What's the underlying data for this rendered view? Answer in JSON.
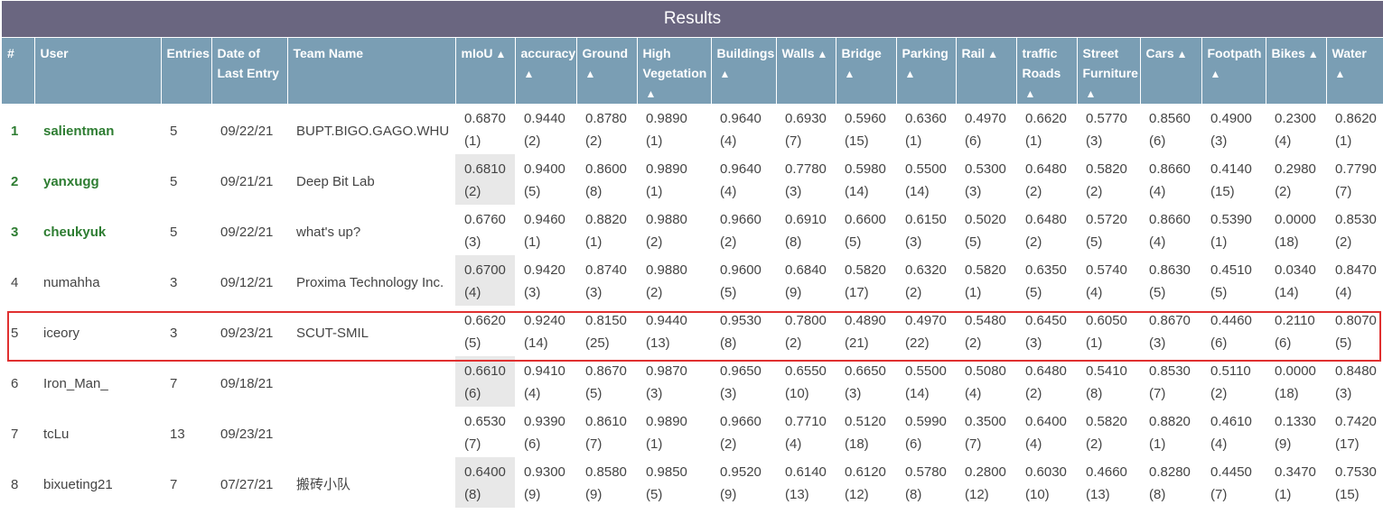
{
  "title": "Results",
  "columns": [
    {
      "key": "rank",
      "label": "#",
      "sortable": false
    },
    {
      "key": "user",
      "label": "User",
      "sortable": false
    },
    {
      "key": "entries",
      "label": "Entries",
      "sortable": false
    },
    {
      "key": "date",
      "label": "Date of Last Entry",
      "sortable": false
    },
    {
      "key": "team",
      "label": "Team Name",
      "sortable": false
    },
    {
      "key": "miou",
      "label": "mIoU",
      "sortable": true
    },
    {
      "key": "accuracy",
      "label": "accuracy",
      "sortable": true
    },
    {
      "key": "ground",
      "label": "Ground",
      "sortable": true
    },
    {
      "key": "highveg",
      "label": "High Vegetation",
      "sortable": true
    },
    {
      "key": "buildings",
      "label": "Buildings",
      "sortable": true
    },
    {
      "key": "walls",
      "label": "Walls",
      "sortable": true
    },
    {
      "key": "bridge",
      "label": "Bridge",
      "sortable": true
    },
    {
      "key": "parking",
      "label": "Parking",
      "sortable": true
    },
    {
      "key": "rail",
      "label": "Rail",
      "sortable": true
    },
    {
      "key": "traffic",
      "label": "traffic Roads",
      "sortable": true
    },
    {
      "key": "street",
      "label": "Street Furniture",
      "sortable": true
    },
    {
      "key": "cars",
      "label": "Cars",
      "sortable": true
    },
    {
      "key": "footpath",
      "label": "Footpath",
      "sortable": true
    },
    {
      "key": "bikes",
      "label": "Bikes",
      "sortable": true
    },
    {
      "key": "water",
      "label": "Water",
      "sortable": true
    }
  ],
  "sort_arrow": "▲",
  "highlighted_row_rank": "5",
  "rows": [
    {
      "rank": "1",
      "user": "salientman",
      "entries": "5",
      "date": "09/22/21",
      "team": "BUPT.BIGO.GAGO.WHU",
      "scores": [
        [
          "0.6870",
          "(1)"
        ],
        [
          "0.9440",
          "(2)"
        ],
        [
          "0.8780",
          "(2)"
        ],
        [
          "0.9890",
          "(1)"
        ],
        [
          "0.9640",
          "(4)"
        ],
        [
          "0.6930",
          "(7)"
        ],
        [
          "0.5960",
          "(15)"
        ],
        [
          "0.6360",
          "(1)"
        ],
        [
          "0.4970",
          "(6)"
        ],
        [
          "0.6620",
          "(1)"
        ],
        [
          "0.5770",
          "(3)"
        ],
        [
          "0.8560",
          "(6)"
        ],
        [
          "0.4900",
          "(3)"
        ],
        [
          "0.2300",
          "(4)"
        ],
        [
          "0.8620",
          "(1)"
        ]
      ],
      "miou_highlight": false,
      "top": true
    },
    {
      "rank": "2",
      "user": "yanxugg",
      "entries": "5",
      "date": "09/21/21",
      "team": "Deep Bit Lab",
      "scores": [
        [
          "0.6810",
          "(2)"
        ],
        [
          "0.9400",
          "(5)"
        ],
        [
          "0.8600",
          "(8)"
        ],
        [
          "0.9890",
          "(1)"
        ],
        [
          "0.9640",
          "(4)"
        ],
        [
          "0.7780",
          "(3)"
        ],
        [
          "0.5980",
          "(14)"
        ],
        [
          "0.5500",
          "(14)"
        ],
        [
          "0.5300",
          "(3)"
        ],
        [
          "0.6480",
          "(2)"
        ],
        [
          "0.5820",
          "(2)"
        ],
        [
          "0.8660",
          "(4)"
        ],
        [
          "0.4140",
          "(15)"
        ],
        [
          "0.2980",
          "(2)"
        ],
        [
          "0.7790",
          "(7)"
        ]
      ],
      "miou_highlight": true,
      "top": true
    },
    {
      "rank": "3",
      "user": "cheukyuk",
      "entries": "5",
      "date": "09/22/21",
      "team": "what's up?",
      "scores": [
        [
          "0.6760",
          "(3)"
        ],
        [
          "0.9460",
          "(1)"
        ],
        [
          "0.8820",
          "(1)"
        ],
        [
          "0.9880",
          "(2)"
        ],
        [
          "0.9660",
          "(2)"
        ],
        [
          "0.6910",
          "(8)"
        ],
        [
          "0.6600",
          "(5)"
        ],
        [
          "0.6150",
          "(3)"
        ],
        [
          "0.5020",
          "(5)"
        ],
        [
          "0.6480",
          "(2)"
        ],
        [
          "0.5720",
          "(5)"
        ],
        [
          "0.8660",
          "(4)"
        ],
        [
          "0.5390",
          "(1)"
        ],
        [
          "0.0000",
          "(18)"
        ],
        [
          "0.8530",
          "(2)"
        ]
      ],
      "miou_highlight": false,
      "top": true
    },
    {
      "rank": "4",
      "user": "numahha",
      "entries": "3",
      "date": "09/12/21",
      "team": "Proxima Technology Inc.",
      "scores": [
        [
          "0.6700",
          "(4)"
        ],
        [
          "0.9420",
          "(3)"
        ],
        [
          "0.8740",
          "(3)"
        ],
        [
          "0.9880",
          "(2)"
        ],
        [
          "0.9600",
          "(5)"
        ],
        [
          "0.6840",
          "(9)"
        ],
        [
          "0.5820",
          "(17)"
        ],
        [
          "0.6320",
          "(2)"
        ],
        [
          "0.5820",
          "(1)"
        ],
        [
          "0.6350",
          "(5)"
        ],
        [
          "0.5740",
          "(4)"
        ],
        [
          "0.8630",
          "(5)"
        ],
        [
          "0.4510",
          "(5)"
        ],
        [
          "0.0340",
          "(14)"
        ],
        [
          "0.8470",
          "(4)"
        ]
      ],
      "miou_highlight": true,
      "top": false
    },
    {
      "rank": "5",
      "user": "iceory",
      "entries": "3",
      "date": "09/23/21",
      "team": "SCUT-SMIL",
      "scores": [
        [
          "0.6620",
          "(5)"
        ],
        [
          "0.9240",
          "(14)"
        ],
        [
          "0.8150",
          "(25)"
        ],
        [
          "0.9440",
          "(13)"
        ],
        [
          "0.9530",
          "(8)"
        ],
        [
          "0.7800",
          "(2)"
        ],
        [
          "0.4890",
          "(21)"
        ],
        [
          "0.4970",
          "(22)"
        ],
        [
          "0.5480",
          "(2)"
        ],
        [
          "0.6450",
          "(3)"
        ],
        [
          "0.6050",
          "(1)"
        ],
        [
          "0.8670",
          "(3)"
        ],
        [
          "0.4460",
          "(6)"
        ],
        [
          "0.2110",
          "(6)"
        ],
        [
          "0.8070",
          "(5)"
        ]
      ],
      "miou_highlight": false,
      "top": false
    },
    {
      "rank": "6",
      "user": "Iron_Man_",
      "entries": "7",
      "date": "09/18/21",
      "team": "",
      "scores": [
        [
          "0.6610",
          "(6)"
        ],
        [
          "0.9410",
          "(4)"
        ],
        [
          "0.8670",
          "(5)"
        ],
        [
          "0.9870",
          "(3)"
        ],
        [
          "0.9650",
          "(3)"
        ],
        [
          "0.6550",
          "(10)"
        ],
        [
          "0.6650",
          "(3)"
        ],
        [
          "0.5500",
          "(14)"
        ],
        [
          "0.5080",
          "(4)"
        ],
        [
          "0.6480",
          "(2)"
        ],
        [
          "0.5410",
          "(8)"
        ],
        [
          "0.8530",
          "(7)"
        ],
        [
          "0.5110",
          "(2)"
        ],
        [
          "0.0000",
          "(18)"
        ],
        [
          "0.8480",
          "(3)"
        ]
      ],
      "miou_highlight": true,
      "top": false
    },
    {
      "rank": "7",
      "user": "tcLu",
      "entries": "13",
      "date": "09/23/21",
      "team": "",
      "scores": [
        [
          "0.6530",
          "(7)"
        ],
        [
          "0.9390",
          "(6)"
        ],
        [
          "0.8610",
          "(7)"
        ],
        [
          "0.9890",
          "(1)"
        ],
        [
          "0.9660",
          "(2)"
        ],
        [
          "0.7710",
          "(4)"
        ],
        [
          "0.5120",
          "(18)"
        ],
        [
          "0.5990",
          "(6)"
        ],
        [
          "0.3500",
          "(7)"
        ],
        [
          "0.6400",
          "(4)"
        ],
        [
          "0.5820",
          "(2)"
        ],
        [
          "0.8820",
          "(1)"
        ],
        [
          "0.4610",
          "(4)"
        ],
        [
          "0.1330",
          "(9)"
        ],
        [
          "0.7420",
          "(17)"
        ]
      ],
      "miou_highlight": false,
      "top": false
    },
    {
      "rank": "8",
      "user": "bixueting21",
      "entries": "7",
      "date": "07/27/21",
      "team": "搬砖小队",
      "scores": [
        [
          "0.6400",
          "(8)"
        ],
        [
          "0.9300",
          "(9)"
        ],
        [
          "0.8580",
          "(9)"
        ],
        [
          "0.9850",
          "(5)"
        ],
        [
          "0.9520",
          "(9)"
        ],
        [
          "0.6140",
          "(13)"
        ],
        [
          "0.6120",
          "(12)"
        ],
        [
          "0.5780",
          "(8)"
        ],
        [
          "0.2800",
          "(12)"
        ],
        [
          "0.6030",
          "(10)"
        ],
        [
          "0.4660",
          "(13)"
        ],
        [
          "0.8280",
          "(8)"
        ],
        [
          "0.4450",
          "(7)"
        ],
        [
          "0.3470",
          "(1)"
        ],
        [
          "0.7530",
          "(15)"
        ]
      ],
      "miou_highlight": true,
      "top": false
    }
  ]
}
